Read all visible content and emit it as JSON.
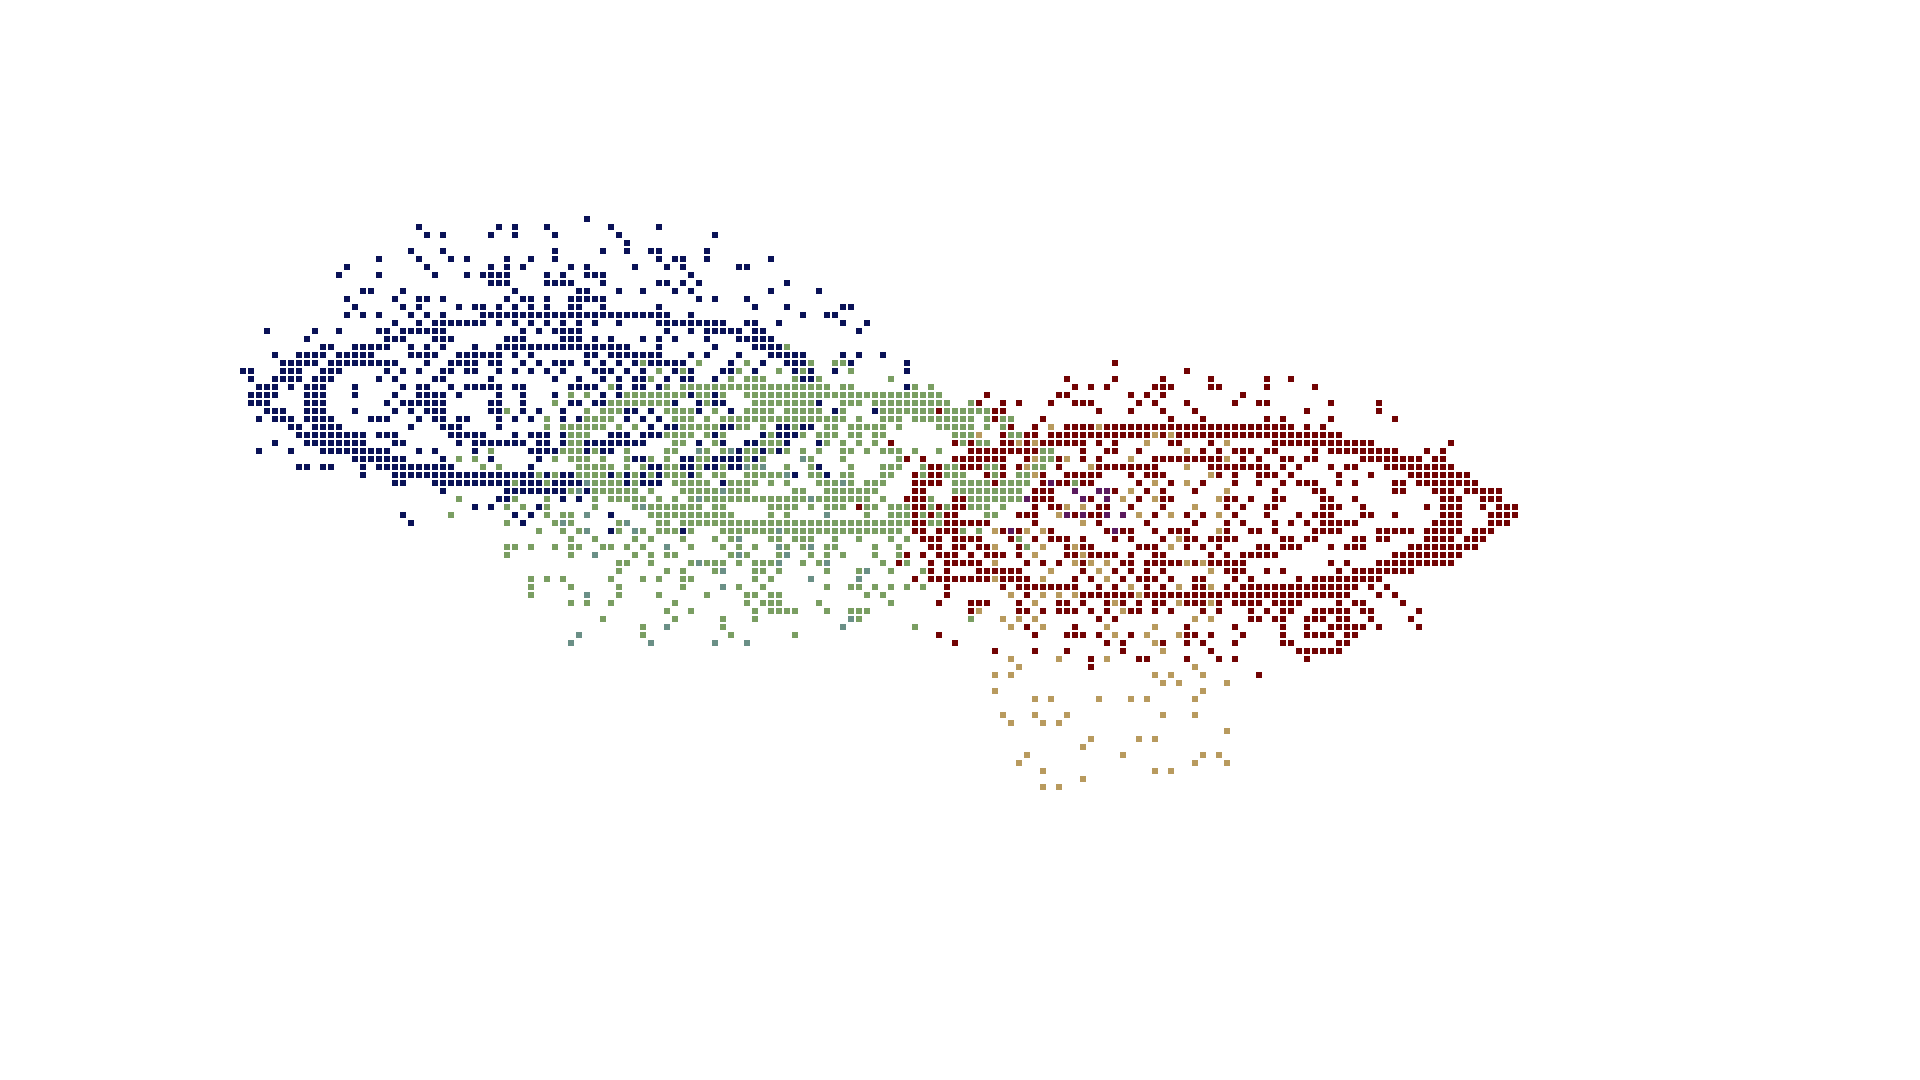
{
  "artwork": {
    "description_visible_text": "",
    "background_color": "#ffffff",
    "palette": {
      "navy": "#0a1257",
      "sage": "#7a9e62",
      "maroon": "#720404",
      "tan": "#b89a5e",
      "teal": "#6a8f86",
      "purple": "#5a1a5e"
    },
    "clusters": [
      {
        "name": "navy-swirl",
        "color_key": "navy",
        "ring_color_key": "navy",
        "density_level": 0.55
      },
      {
        "name": "sage-swirl",
        "color_key": "sage",
        "ring_color_key": "sage",
        "density_level": 0.5
      },
      {
        "name": "maroon-swirl",
        "color_key": "maroon",
        "ring_color_key": "maroon",
        "density_level": 0.55
      }
    ]
  }
}
